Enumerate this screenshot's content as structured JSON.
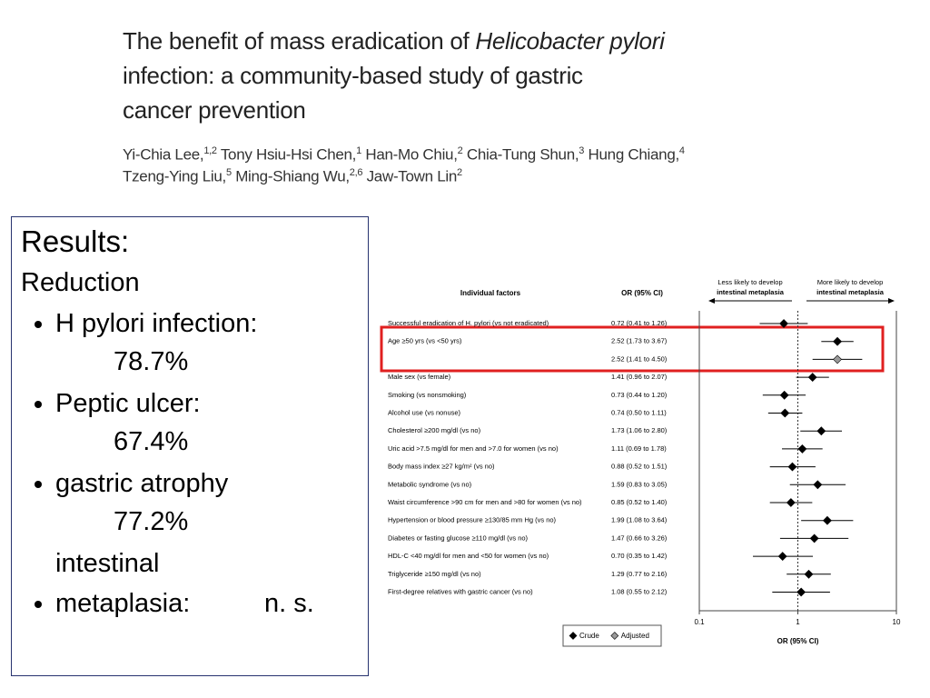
{
  "header": {
    "title_line1": "The benefit of mass eradication of ",
    "title_italic": "Helicobacter pylori",
    "title_line2": "infection: a community-based study of gastric",
    "title_line3": "cancer prevention",
    "authors_lines": [
      [
        {
          "name": "Yi-Chia Lee,",
          "sup": "1,2"
        },
        {
          "name": " Tony Hsiu-Hsi Chen,",
          "sup": "1"
        },
        {
          "name": " Han-Mo Chiu,",
          "sup": "2"
        },
        {
          "name": " Chia-Tung Shun,",
          "sup": "3"
        },
        {
          "name": " Hung Chiang,",
          "sup": "4"
        }
      ],
      [
        {
          "name": "Tzeng-Ying Liu,",
          "sup": "5"
        },
        {
          "name": " Ming-Shiang Wu,",
          "sup": "2,6"
        },
        {
          "name": " Jaw-Town Lin",
          "sup": "2"
        }
      ]
    ]
  },
  "results": {
    "heading": "Results:",
    "subheading": "Reduction",
    "items": [
      {
        "label": "H pylori infection:",
        "value": "78.7%"
      },
      {
        "label": "Peptic ulcer:",
        "value": "67.4%"
      },
      {
        "label": "gastric atrophy",
        "value": "77.2%"
      },
      {
        "label": "intestinal metaplasia:",
        "value": "n. s."
      }
    ]
  },
  "chart_data": {
    "type": "forest",
    "column_headers": [
      "Individual factors",
      "OR (95% CI)"
    ],
    "annotation_left": [
      "Less likely to develop",
      "intestinal metaplasia"
    ],
    "annotation_right": [
      "More likely to develop",
      "intestinal metaplasia"
    ],
    "xlabel": "OR (95% CI)",
    "log_x": true,
    "xlim": [
      0.1,
      10
    ],
    "xticks": [
      0.1,
      1,
      10
    ],
    "reference_line": 1,
    "categories": [
      "Successful eradication of H. pylori (vs not eradicated)",
      "Age ≥50 yrs (vs <50 yrs)",
      "Male sex (vs female)",
      "Smoking (vs nonsmoking)",
      "Alcohol use (vs nonuse)",
      "Cholesterol ≥200 mg/dl (vs no)",
      "Uric acid >7.5 mg/dl for men and >7.0 for women (vs no)",
      "Body mass index ≥27 kg/m² (vs no)",
      "Metabolic syndrome (vs no)",
      "Waist circumference >90 cm for men and >80 for women (vs no)",
      "Hypertension or blood pressure ≥130/85 mm Hg (vs no)",
      "Diabetes or fasting glucose ≥110 mg/dl (vs no)",
      "HDL-C <40 mg/dl for men and <50 for women (vs no)",
      "Triglyceride ≥150 mg/dl (vs no)",
      "First-degree relatives with gastric cancer (vs no)"
    ],
    "series": [
      {
        "name": "Crude",
        "color": "#000000",
        "values": [
          0.72,
          2.52,
          1.41,
          0.73,
          0.74,
          1.73,
          1.11,
          0.88,
          1.59,
          0.85,
          1.99,
          1.47,
          0.7,
          1.29,
          1.08
        ],
        "ci_low": [
          0.41,
          1.73,
          0.96,
          0.44,
          0.5,
          1.06,
          0.69,
          0.52,
          0.83,
          0.52,
          1.08,
          0.66,
          0.35,
          0.77,
          0.55
        ],
        "ci_high": [
          1.26,
          3.67,
          2.07,
          1.2,
          1.11,
          2.8,
          1.78,
          1.51,
          3.05,
          1.4,
          3.64,
          3.26,
          1.42,
          2.16,
          2.12
        ],
        "value_labels": [
          "0.72 (0.41 to 1.26)",
          "2.52 (1.73 to 3.67)",
          "1.41 (0.96 to 2.07)",
          "0.73 (0.44 to 1.20)",
          "0.74 (0.50 to 1.11)",
          "1.73 (1.06 to 2.80)",
          "1.11 (0.69 to 1.78)",
          "0.88 (0.52 to 1.51)",
          "1.59 (0.83 to 3.05)",
          "0.85 (0.52 to 1.40)",
          "1.99 (1.08 to 3.64)",
          "1.47 (0.66 to 3.26)",
          "0.70 (0.35 to 1.42)",
          "1.29 (0.77 to 2.16)",
          "1.08 (0.55 to 2.12)"
        ]
      },
      {
        "name": "Adjusted",
        "color": "#999999",
        "values": [
          null,
          2.52,
          null,
          null,
          null,
          null,
          null,
          null,
          null,
          null,
          null,
          null,
          null,
          null,
          null
        ],
        "ci_low": [
          null,
          1.41,
          null,
          null,
          null,
          null,
          null,
          null,
          null,
          null,
          null,
          null,
          null,
          null,
          null
        ],
        "ci_high": [
          null,
          4.5,
          null,
          null,
          null,
          null,
          null,
          null,
          null,
          null,
          null,
          null,
          null,
          null,
          null
        ],
        "value_labels": [
          null,
          "2.52 (1.41 to 4.50)",
          null,
          null,
          null,
          null,
          null,
          null,
          null,
          null,
          null,
          null,
          null,
          null,
          null
        ]
      }
    ]
  }
}
